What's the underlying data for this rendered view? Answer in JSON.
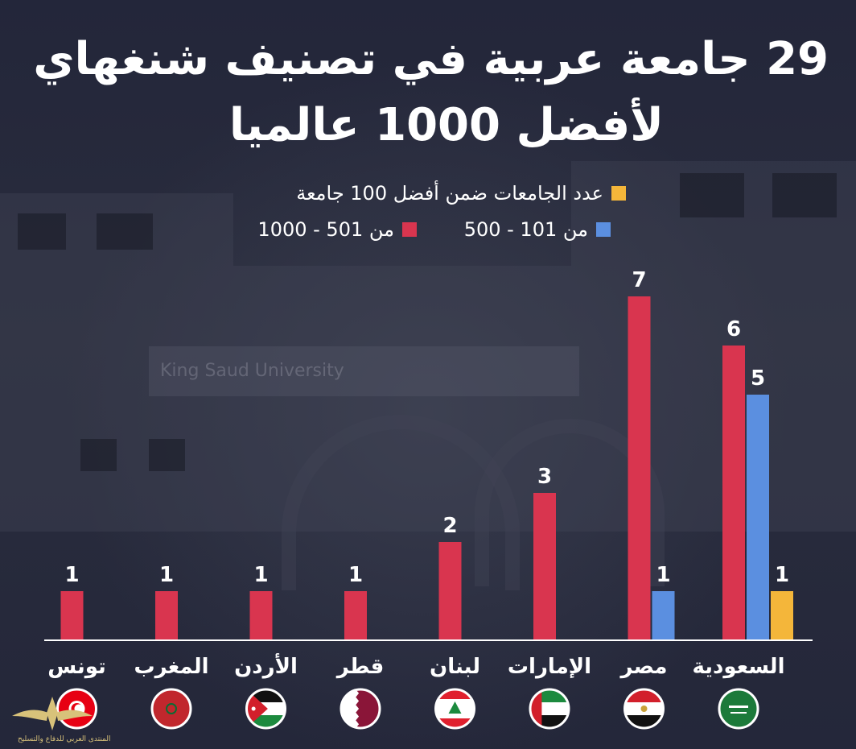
{
  "title_line1": "29 جامعة عربية في تصنيف شنغهاي",
  "title_line2": "لأفضل 1000 عالميا",
  "legend": [
    {
      "label": "عدد الجامعات ضمن أفضل 100 جامعة",
      "color": "#f4b63a"
    },
    {
      "label": "من 101 - 500",
      "color": "#5b8fe0"
    },
    {
      "label": "من 501 - 1000",
      "color": "#d9354f"
    }
  ],
  "watermark": "المنتدى العربي للدفاع والتسليح",
  "chart_data": {
    "type": "bar",
    "title": "29 جامعة عربية في تصنيف شنغهاي لأفضل 1000 عالميا",
    "categories": [
      "السعودية",
      "مصر",
      "الإمارات",
      "لبنان",
      "قطر",
      "الأردن",
      "المغرب",
      "تونس"
    ],
    "series": [
      {
        "name": "من 501 - 1000",
        "color": "#d9354f",
        "values": [
          6,
          7,
          3,
          2,
          1,
          1,
          1,
          1
        ]
      },
      {
        "name": "من 101 - 500",
        "color": "#5b8fe0",
        "values": [
          5,
          1,
          0,
          0,
          0,
          0,
          0,
          0
        ]
      },
      {
        "name": "عدد الجامعات ضمن أفضل 100 جامعة",
        "color": "#f4b63a",
        "values": [
          1,
          0,
          0,
          0,
          0,
          0,
          0,
          0
        ]
      }
    ],
    "ylim": [
      0,
      7.4
    ],
    "grid": false,
    "legend_position": "top-right",
    "flags": [
      "saudi-flag-icon",
      "egypt-flag-icon",
      "uae-flag-icon",
      "lebanon-flag-icon",
      "qatar-flag-icon",
      "jordan-flag-icon",
      "morocco-flag-icon",
      "tunisia-flag-icon"
    ]
  }
}
